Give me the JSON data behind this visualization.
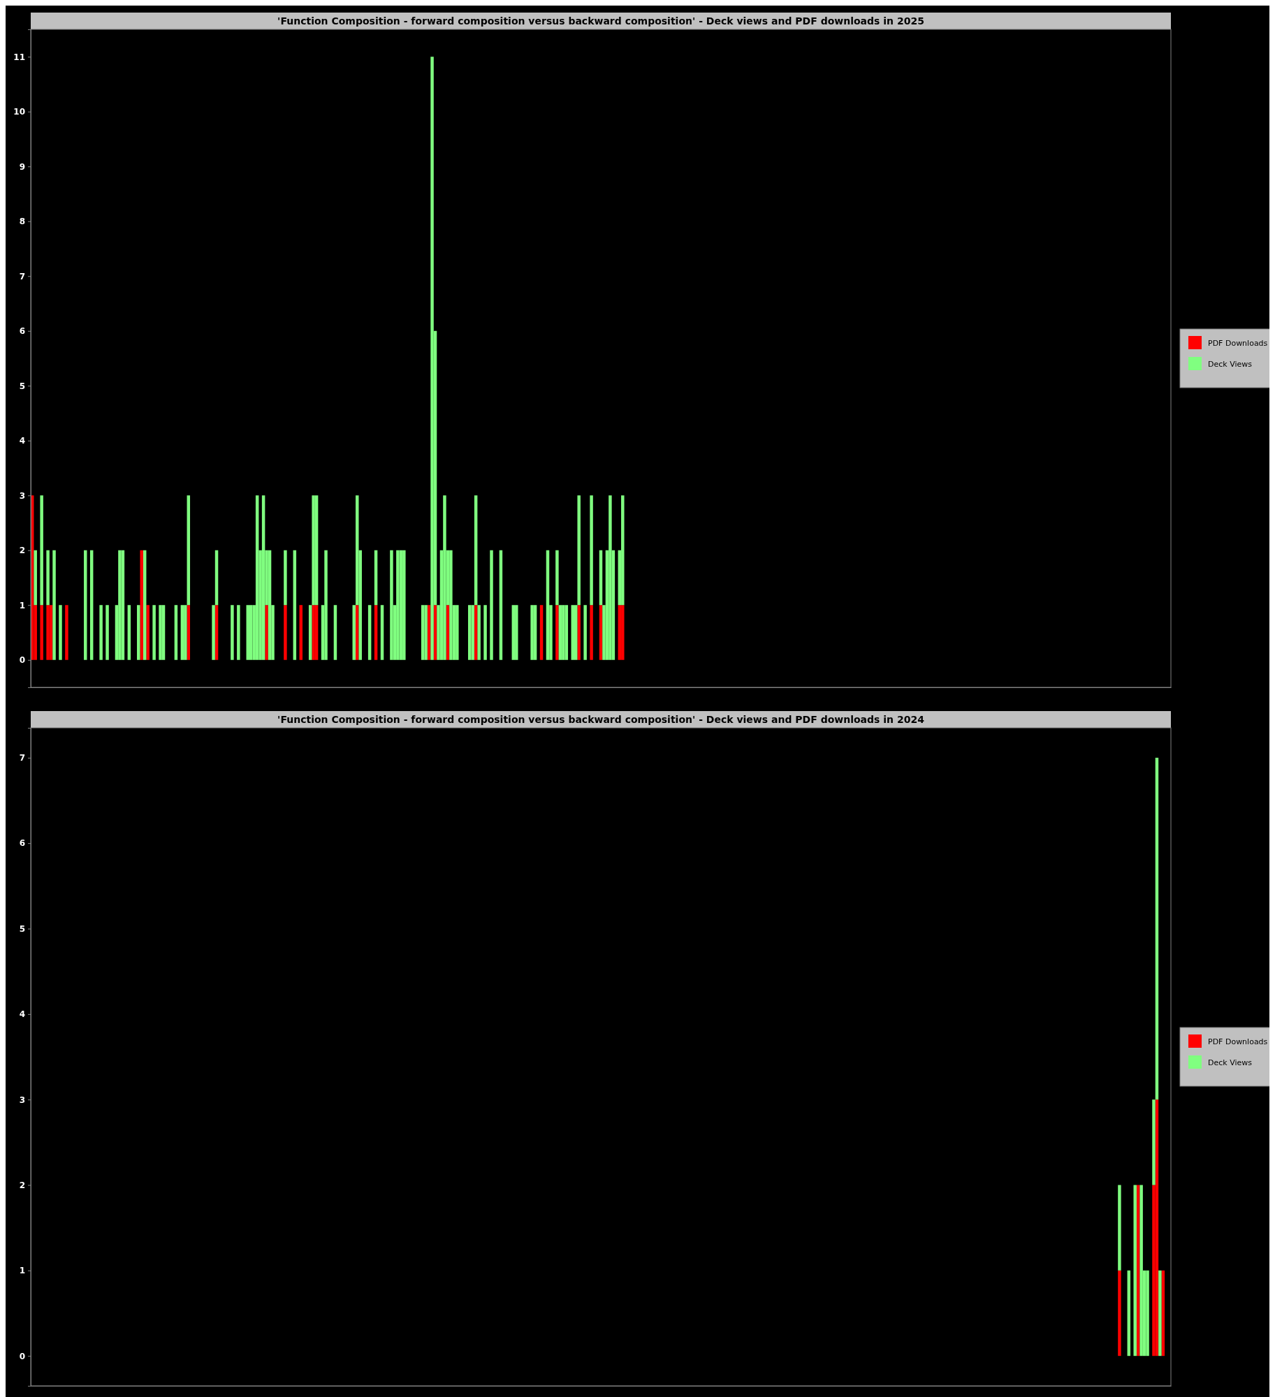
{
  "chart_data": [
    {
      "type": "bar",
      "title": "'Function Composition - forward composition versus backward composition' - Deck views and PDF downloads in 2025",
      "stacked": true,
      "legend": "right",
      "ylim": [
        -0.5,
        11.5
      ],
      "yticks": [
        0,
        1,
        2,
        3,
        4,
        5,
        6,
        7,
        8,
        9,
        10,
        11
      ],
      "tick_labels": "y",
      "categories": [
        null,
        null,
        null,
        null,
        null,
        null,
        null,
        null,
        null,
        null,
        null,
        null,
        null,
        null,
        null,
        null,
        null,
        null,
        null,
        null,
        null,
        null,
        null,
        null,
        null,
        null,
        null,
        null,
        null,
        null,
        null,
        null,
        null,
        null,
        null,
        null,
        null,
        null,
        null,
        null,
        null,
        null,
        null,
        null,
        null,
        null,
        null,
        null,
        null,
        null,
        null,
        null,
        null,
        null,
        null,
        null,
        null,
        null,
        null,
        null,
        null,
        null,
        null,
        null,
        null,
        null,
        null,
        null,
        null,
        null,
        null,
        null,
        null,
        null,
        null,
        null,
        null,
        null,
        null,
        null,
        null,
        null,
        null,
        null,
        null,
        null,
        null,
        null,
        null,
        null,
        null,
        null,
        null,
        null,
        null,
        null,
        null,
        null,
        null,
        null,
        null,
        null,
        null,
        null,
        null,
        null,
        null,
        null,
        null,
        null,
        null,
        null,
        null,
        null,
        null,
        null,
        null,
        null,
        null,
        null,
        null,
        null,
        null,
        null,
        null,
        null,
        null,
        null,
        null,
        null,
        null,
        null,
        null,
        null,
        null,
        null,
        null,
        null,
        null,
        null,
        null,
        null,
        null,
        null,
        null,
        null,
        null,
        null,
        null,
        null,
        null,
        null,
        null,
        null,
        null,
        null,
        null,
        null,
        null,
        null,
        null,
        null,
        null,
        null,
        null,
        null,
        null,
        null,
        null,
        null,
        null,
        null,
        null,
        null,
        null,
        null,
        null,
        null,
        null,
        null,
        null,
        null,
        null,
        null,
        null,
        null,
        null,
        null,
        null,
        null,
        null,
        null,
        null,
        null,
        null,
        null,
        null,
        null,
        null,
        null,
        null,
        null,
        null,
        null,
        null,
        null,
        null,
        null,
        null,
        null,
        null,
        null,
        null,
        null,
        null,
        null,
        null,
        null,
        null,
        null,
        null,
        null,
        null,
        null,
        null,
        null,
        null,
        null,
        null,
        null,
        null,
        null,
        null,
        null,
        null,
        null,
        null,
        null,
        null,
        null,
        null,
        null,
        null,
        null,
        null,
        null,
        null,
        null,
        null,
        null,
        null,
        null,
        null,
        null,
        null,
        null,
        null,
        null,
        null,
        null,
        null,
        null,
        null,
        null,
        null,
        null,
        null,
        null,
        null,
        null,
        null,
        null,
        null,
        null,
        null,
        null,
        null,
        null,
        null,
        null,
        null,
        null,
        null,
        null,
        null,
        null,
        null,
        null,
        null,
        null,
        null,
        null,
        null,
        null,
        null,
        null,
        null,
        null,
        null,
        null,
        null,
        null,
        null,
        null,
        null,
        null,
        null,
        null,
        null,
        null,
        null,
        null,
        null,
        null,
        null,
        null,
        null,
        null,
        null,
        null,
        null,
        null,
        null,
        null,
        null,
        null,
        null,
        null,
        null,
        null,
        null,
        null,
        null,
        null,
        null,
        null,
        null,
        null,
        null,
        null,
        null,
        null,
        null,
        null,
        null,
        null,
        null,
        null,
        null,
        null,
        null,
        null,
        null,
        null,
        null,
        null,
        null,
        null,
        null,
        null,
        null,
        null,
        null,
        null,
        null
      ],
      "series": [
        {
          "name": "PDF Downloads",
          "color": "#ff0000",
          "values": [
            3,
            1,
            null,
            1,
            null,
            1,
            1,
            null,
            null,
            null,
            null,
            1,
            null,
            null,
            null,
            null,
            null,
            null,
            null,
            null,
            null,
            null,
            null,
            null,
            null,
            null,
            null,
            null,
            null,
            null,
            null,
            null,
            null,
            null,
            null,
            2,
            null,
            1,
            null,
            null,
            null,
            null,
            null,
            null,
            null,
            null,
            null,
            null,
            null,
            null,
            1,
            null,
            null,
            null,
            null,
            null,
            null,
            null,
            null,
            1,
            null,
            null,
            null,
            null,
            null,
            null,
            null,
            null,
            null,
            null,
            null,
            null,
            null,
            null,
            null,
            1,
            null,
            null,
            null,
            null,
            null,
            1,
            null,
            null,
            null,
            null,
            1,
            null,
            null,
            null,
            1,
            1,
            null,
            null,
            null,
            null,
            null,
            null,
            null,
            null,
            null,
            null,
            null,
            null,
            1,
            null,
            null,
            null,
            null,
            null,
            1,
            null,
            null,
            null,
            null,
            null,
            null,
            null,
            null,
            null,
            null,
            null,
            null,
            null,
            null,
            null,
            null,
            1,
            null,
            1,
            null,
            null,
            null,
            1,
            null,
            null,
            null,
            null,
            null,
            null,
            null,
            null,
            1,
            null,
            null,
            null,
            null,
            null,
            null,
            null,
            null,
            null,
            null,
            null,
            null,
            null,
            null,
            null,
            null,
            null,
            null,
            null,
            null,
            1,
            null,
            null,
            null,
            null,
            1,
            null,
            null,
            null,
            null,
            null,
            null,
            1,
            null,
            null,
            null,
            1,
            null,
            null,
            1,
            null,
            null,
            null,
            null,
            null,
            1,
            1,
            null,
            null,
            null,
            null,
            null,
            null,
            null,
            null,
            null,
            null,
            null,
            null,
            null,
            null,
            null,
            null,
            null,
            null,
            null,
            null,
            null,
            null,
            null,
            null,
            null,
            null,
            null,
            null,
            null,
            null,
            null,
            null,
            null,
            null,
            null,
            null,
            null,
            null,
            null,
            null,
            null,
            null,
            null,
            null,
            null,
            null,
            null,
            null,
            null,
            null,
            null,
            null,
            null,
            null,
            null,
            null,
            null,
            null,
            null,
            null,
            null,
            null,
            null,
            null,
            null,
            null,
            null,
            null,
            null,
            null,
            null,
            null,
            null,
            null,
            null,
            null,
            null,
            null,
            null,
            null,
            null,
            null,
            null,
            null,
            null,
            null,
            null,
            null,
            null,
            null,
            null,
            null,
            null,
            null,
            null,
            null,
            null,
            null,
            null,
            null,
            null,
            null,
            null,
            null,
            null,
            null,
            null,
            null,
            null,
            null,
            null,
            null,
            null,
            null,
            null,
            null,
            null,
            null,
            null,
            null,
            null,
            null,
            null,
            null,
            null,
            null,
            null,
            null,
            null,
            null,
            null,
            null,
            null,
            null,
            null,
            null,
            null,
            null,
            null,
            null,
            null,
            null,
            null,
            null,
            null,
            null,
            null,
            null,
            null,
            null,
            null,
            null,
            null,
            null,
            null,
            null,
            null,
            null,
            null,
            null,
            null,
            null,
            null,
            null,
            null,
            null,
            null,
            null,
            null,
            null,
            null,
            null,
            null,
            null,
            null
          ]
        },
        {
          "name": "Deck Views",
          "color": "#80ff80",
          "values": [
            null,
            1,
            null,
            2,
            null,
            1,
            null,
            2,
            null,
            1,
            null,
            null,
            null,
            null,
            null,
            null,
            null,
            2,
            null,
            2,
            null,
            null,
            1,
            null,
            1,
            null,
            null,
            1,
            2,
            2,
            null,
            1,
            null,
            null,
            1,
            null,
            2,
            null,
            null,
            1,
            null,
            1,
            1,
            null,
            null,
            null,
            1,
            null,
            1,
            1,
            2,
            null,
            null,
            null,
            null,
            null,
            null,
            null,
            1,
            1,
            null,
            null,
            null,
            null,
            1,
            null,
            1,
            null,
            null,
            1,
            1,
            1,
            3,
            2,
            3,
            1,
            2,
            1,
            null,
            null,
            null,
            1,
            null,
            null,
            2,
            null,
            null,
            null,
            null,
            1,
            2,
            2,
            null,
            1,
            2,
            null,
            null,
            1,
            null,
            null,
            null,
            null,
            null,
            1,
            2,
            2,
            null,
            null,
            1,
            null,
            1,
            null,
            1,
            null,
            null,
            2,
            1,
            2,
            2,
            2,
            null,
            null,
            null,
            null,
            null,
            1,
            1,
            null,
            11,
            5,
            1,
            2,
            3,
            1,
            2,
            1,
            1,
            null,
            null,
            null,
            1,
            1,
            2,
            1,
            null,
            1,
            null,
            2,
            null,
            null,
            2,
            null,
            null,
            null,
            1,
            1,
            null,
            null,
            null,
            null,
            1,
            1,
            null,
            null,
            null,
            2,
            1,
            null,
            1,
            1,
            1,
            1,
            null,
            1,
            1,
            2,
            null,
            1,
            null,
            2,
            null,
            null,
            1,
            1,
            2,
            3,
            2,
            null,
            1,
            2,
            null,
            null,
            null,
            null,
            null,
            null,
            null,
            null,
            null,
            null,
            null,
            null,
            null,
            null,
            null,
            null,
            null,
            null,
            null,
            null,
            null,
            null,
            null,
            null,
            null,
            null,
            null,
            null,
            null,
            null,
            null,
            null,
            null,
            null,
            null,
            null,
            null,
            null,
            null,
            null,
            null,
            null,
            null,
            null,
            null,
            null,
            null,
            null,
            null,
            null,
            null,
            null,
            null,
            null,
            null,
            null,
            null,
            null,
            null,
            null,
            null,
            null,
            null,
            null,
            null,
            null,
            null,
            null,
            null,
            null,
            null,
            null,
            null,
            null,
            null,
            null,
            null,
            null,
            null,
            null,
            null,
            null,
            null,
            null,
            null,
            null,
            null,
            null,
            null,
            null,
            null,
            null,
            null,
            null,
            null,
            null,
            null,
            null,
            null,
            null,
            null,
            null,
            null,
            null,
            null,
            null,
            null,
            null,
            null,
            null,
            null,
            null,
            null,
            null,
            null,
            null,
            null,
            null,
            null,
            null,
            null,
            null,
            null,
            null,
            null,
            null,
            null,
            null,
            null,
            null,
            null,
            null,
            null,
            null,
            null,
            null,
            null,
            null,
            null,
            null,
            null,
            null,
            null,
            null,
            null,
            null,
            null,
            null,
            null,
            null,
            null,
            null,
            null,
            null,
            null,
            null,
            null,
            null,
            null,
            null,
            null,
            null,
            null,
            null,
            null,
            null,
            null,
            null,
            null,
            null,
            null,
            null,
            null,
            null,
            null
          ]
        }
      ]
    },
    {
      "type": "bar",
      "title": "'Function Composition - forward composition versus backward composition' - Deck views and PDF downloads in 2024",
      "stacked": true,
      "legend": "right",
      "ylim": [
        -0.35,
        7.35
      ],
      "yticks": [
        0,
        1,
        2,
        3,
        4,
        5,
        6,
        7
      ],
      "tick_labels": "y",
      "categories": [
        null,
        null,
        null,
        null,
        null,
        null,
        null,
        null,
        null,
        null,
        null,
        null,
        null,
        null,
        null,
        null,
        null,
        null,
        null,
        null,
        null,
        null,
        null,
        null,
        null,
        null,
        null,
        null,
        null,
        null,
        null,
        null,
        null,
        null,
        null,
        null,
        null,
        null,
        null,
        null,
        null,
        null,
        null,
        null,
        null,
        null,
        null,
        null,
        null,
        null,
        null,
        null,
        null,
        null,
        null,
        null,
        null,
        null,
        null,
        null,
        null,
        null,
        null,
        null,
        null,
        null,
        null,
        null,
        null,
        null,
        null,
        null,
        null,
        null,
        null,
        null,
        null,
        null,
        null,
        null,
        null,
        null,
        null,
        null,
        null,
        null,
        null,
        null,
        null,
        null,
        null,
        null,
        null,
        null,
        null,
        null,
        null,
        null,
        null,
        null,
        null,
        null,
        null,
        null,
        null,
        null,
        null,
        null,
        null,
        null,
        null,
        null,
        null,
        null,
        null,
        null,
        null,
        null,
        null,
        null,
        null,
        null,
        null,
        null,
        null,
        null,
        null,
        null,
        null,
        null,
        null,
        null,
        null,
        null,
        null,
        null,
        null,
        null,
        null,
        null,
        null,
        null,
        null,
        null,
        null,
        null,
        null,
        null,
        null,
        null,
        null,
        null,
        null,
        null,
        null,
        null,
        null,
        null,
        null,
        null,
        null,
        null,
        null,
        null,
        null,
        null,
        null,
        null,
        null,
        null,
        null,
        null,
        null,
        null,
        null,
        null,
        null,
        null,
        null,
        null,
        null,
        null,
        null,
        null,
        null,
        null,
        null,
        null,
        null,
        null,
        null,
        null,
        null,
        null,
        null,
        null,
        null,
        null,
        null,
        null,
        null,
        null,
        null,
        null,
        null,
        null,
        null,
        null,
        null,
        null,
        null,
        null,
        null,
        null,
        null,
        null,
        null,
        null,
        null,
        null,
        null,
        null,
        null,
        null,
        null,
        null,
        null,
        null,
        null,
        null,
        null,
        null,
        null,
        null,
        null,
        null,
        null,
        null,
        null,
        null,
        null,
        null,
        null,
        null,
        null,
        null,
        null,
        null,
        null,
        null,
        null,
        null,
        null,
        null,
        null,
        null,
        null,
        null,
        null,
        null,
        null,
        null,
        null,
        null,
        null,
        null,
        null,
        null,
        null,
        null,
        null,
        null,
        null,
        null,
        null,
        null,
        null,
        null,
        null,
        null,
        null,
        null,
        null,
        null,
        null,
        null,
        null,
        null,
        null,
        null,
        null,
        null,
        null,
        null,
        null,
        null,
        null,
        null,
        null,
        null,
        null,
        null,
        null,
        null,
        null,
        null,
        null,
        null,
        null,
        null,
        null,
        null,
        null,
        null,
        null,
        null,
        null,
        null,
        null,
        null,
        null,
        null,
        null,
        null,
        null,
        null,
        null,
        null,
        null,
        null,
        null,
        null,
        null,
        null,
        null,
        null,
        null,
        null,
        null,
        null,
        null,
        null,
        null,
        null,
        null,
        null,
        null,
        null,
        null,
        null,
        null,
        null,
        null,
        null,
        null,
        null,
        null,
        null,
        null,
        null,
        null,
        null,
        null,
        null,
        null,
        null
      ],
      "series": [
        {
          "name": "PDF Downloads",
          "color": "#ff0000",
          "values": [
            null,
            null,
            null,
            null,
            null,
            null,
            null,
            null,
            null,
            null,
            null,
            null,
            null,
            null,
            null,
            null,
            null,
            null,
            null,
            null,
            null,
            null,
            null,
            null,
            null,
            null,
            null,
            null,
            null,
            null,
            null,
            null,
            null,
            null,
            null,
            null,
            null,
            null,
            null,
            null,
            null,
            null,
            null,
            null,
            null,
            null,
            null,
            null,
            null,
            null,
            null,
            null,
            null,
            null,
            null,
            null,
            null,
            null,
            null,
            null,
            null,
            null,
            null,
            null,
            null,
            null,
            null,
            null,
            null,
            null,
            null,
            null,
            null,
            null,
            null,
            null,
            null,
            null,
            null,
            null,
            null,
            null,
            null,
            null,
            null,
            null,
            null,
            null,
            null,
            null,
            null,
            null,
            null,
            null,
            null,
            null,
            null,
            null,
            null,
            null,
            null,
            null,
            null,
            null,
            null,
            null,
            null,
            null,
            null,
            null,
            null,
            null,
            null,
            null,
            null,
            null,
            null,
            null,
            null,
            null,
            null,
            null,
            null,
            null,
            null,
            null,
            null,
            null,
            null,
            null,
            null,
            null,
            null,
            null,
            null,
            null,
            null,
            null,
            null,
            null,
            null,
            null,
            null,
            null,
            null,
            null,
            null,
            null,
            null,
            null,
            null,
            null,
            null,
            null,
            null,
            null,
            null,
            null,
            null,
            null,
            null,
            null,
            null,
            null,
            null,
            null,
            null,
            null,
            null,
            null,
            null,
            null,
            null,
            null,
            null,
            null,
            null,
            null,
            null,
            null,
            null,
            null,
            null,
            null,
            null,
            null,
            null,
            null,
            null,
            null,
            null,
            null,
            null,
            null,
            null,
            null,
            null,
            null,
            null,
            null,
            null,
            null,
            null,
            null,
            null,
            null,
            null,
            null,
            null,
            null,
            null,
            null,
            null,
            null,
            null,
            null,
            null,
            null,
            null,
            null,
            null,
            null,
            null,
            null,
            null,
            null,
            null,
            null,
            null,
            null,
            null,
            null,
            null,
            null,
            null,
            null,
            null,
            null,
            null,
            null,
            null,
            null,
            null,
            null,
            null,
            null,
            null,
            null,
            null,
            null,
            null,
            null,
            null,
            null,
            null,
            null,
            null,
            null,
            null,
            null,
            null,
            null,
            null,
            null,
            null,
            null,
            null,
            null,
            null,
            null,
            null,
            null,
            null,
            null,
            null,
            null,
            null,
            null,
            null,
            null,
            null,
            null,
            null,
            null,
            null,
            null,
            null,
            null,
            null,
            null,
            null,
            null,
            null,
            null,
            null,
            null,
            null,
            null,
            null,
            null,
            null,
            null,
            null,
            null,
            null,
            null,
            null,
            null,
            null,
            null,
            null,
            null,
            null,
            null,
            null,
            null,
            null,
            null,
            null,
            null,
            null,
            null,
            null,
            null,
            null,
            null,
            null,
            null,
            null,
            null,
            null,
            null,
            null,
            null,
            null,
            null,
            null,
            null,
            null,
            null,
            null,
            null,
            null,
            null,
            null,
            null,
            null,
            null,
            null,
            1,
            null,
            null,
            null,
            null,
            null,
            2,
            null,
            null,
            null,
            null,
            2,
            3,
            null,
            1,
            null,
            null
          ]
        },
        {
          "name": "Deck Views",
          "color": "#80ff80",
          "values": [
            null,
            null,
            null,
            null,
            null,
            null,
            null,
            null,
            null,
            null,
            null,
            null,
            null,
            null,
            null,
            null,
            null,
            null,
            null,
            null,
            null,
            null,
            null,
            null,
            null,
            null,
            null,
            null,
            null,
            null,
            null,
            null,
            null,
            null,
            null,
            null,
            null,
            null,
            null,
            null,
            null,
            null,
            null,
            null,
            null,
            null,
            null,
            null,
            null,
            null,
            null,
            null,
            null,
            null,
            null,
            null,
            null,
            null,
            null,
            null,
            null,
            null,
            null,
            null,
            null,
            null,
            null,
            null,
            null,
            null,
            null,
            null,
            null,
            null,
            null,
            null,
            null,
            null,
            null,
            null,
            null,
            null,
            null,
            null,
            null,
            null,
            null,
            null,
            null,
            null,
            null,
            null,
            null,
            null,
            null,
            null,
            null,
            null,
            null,
            null,
            null,
            null,
            null,
            null,
            null,
            null,
            null,
            null,
            null,
            null,
            null,
            null,
            null,
            null,
            null,
            null,
            null,
            null,
            null,
            null,
            null,
            null,
            null,
            null,
            null,
            null,
            null,
            null,
            null,
            null,
            null,
            null,
            null,
            null,
            null,
            null,
            null,
            null,
            null,
            null,
            null,
            null,
            null,
            null,
            null,
            null,
            null,
            null,
            null,
            null,
            null,
            null,
            null,
            null,
            null,
            null,
            null,
            null,
            null,
            null,
            null,
            null,
            null,
            null,
            null,
            null,
            null,
            null,
            null,
            null,
            null,
            null,
            null,
            null,
            null,
            null,
            null,
            null,
            null,
            null,
            null,
            null,
            null,
            null,
            null,
            null,
            null,
            null,
            null,
            null,
            null,
            null,
            null,
            null,
            null,
            null,
            null,
            null,
            null,
            null,
            null,
            null,
            null,
            null,
            null,
            null,
            null,
            null,
            null,
            null,
            null,
            null,
            null,
            null,
            null,
            null,
            null,
            null,
            null,
            null,
            null,
            null,
            null,
            null,
            null,
            null,
            null,
            null,
            null,
            null,
            null,
            null,
            null,
            null,
            null,
            null,
            null,
            null,
            null,
            null,
            null,
            null,
            null,
            null,
            null,
            null,
            null,
            null,
            null,
            null,
            null,
            null,
            null,
            null,
            null,
            null,
            null,
            null,
            null,
            null,
            null,
            null,
            null,
            null,
            null,
            null,
            null,
            null,
            null,
            null,
            null,
            null,
            null,
            null,
            null,
            null,
            null,
            null,
            null,
            null,
            null,
            null,
            null,
            null,
            null,
            null,
            null,
            null,
            null,
            null,
            null,
            null,
            null,
            null,
            null,
            null,
            null,
            null,
            null,
            null,
            null,
            null,
            null,
            null,
            null,
            null,
            null,
            null,
            null,
            null,
            null,
            null,
            null,
            null,
            null,
            null,
            null,
            null,
            null,
            null,
            null,
            null,
            null,
            null,
            null,
            null,
            null,
            null,
            null,
            null,
            null,
            null,
            null,
            null,
            null,
            null,
            null,
            null,
            null,
            null,
            null,
            null,
            null,
            null,
            null,
            null,
            null,
            null,
            null,
            1,
            null,
            null,
            1,
            null,
            2,
            null,
            2,
            1,
            1,
            null,
            1,
            4,
            1,
            null,
            null,
            null
          ]
        }
      ]
    }
  ]
}
